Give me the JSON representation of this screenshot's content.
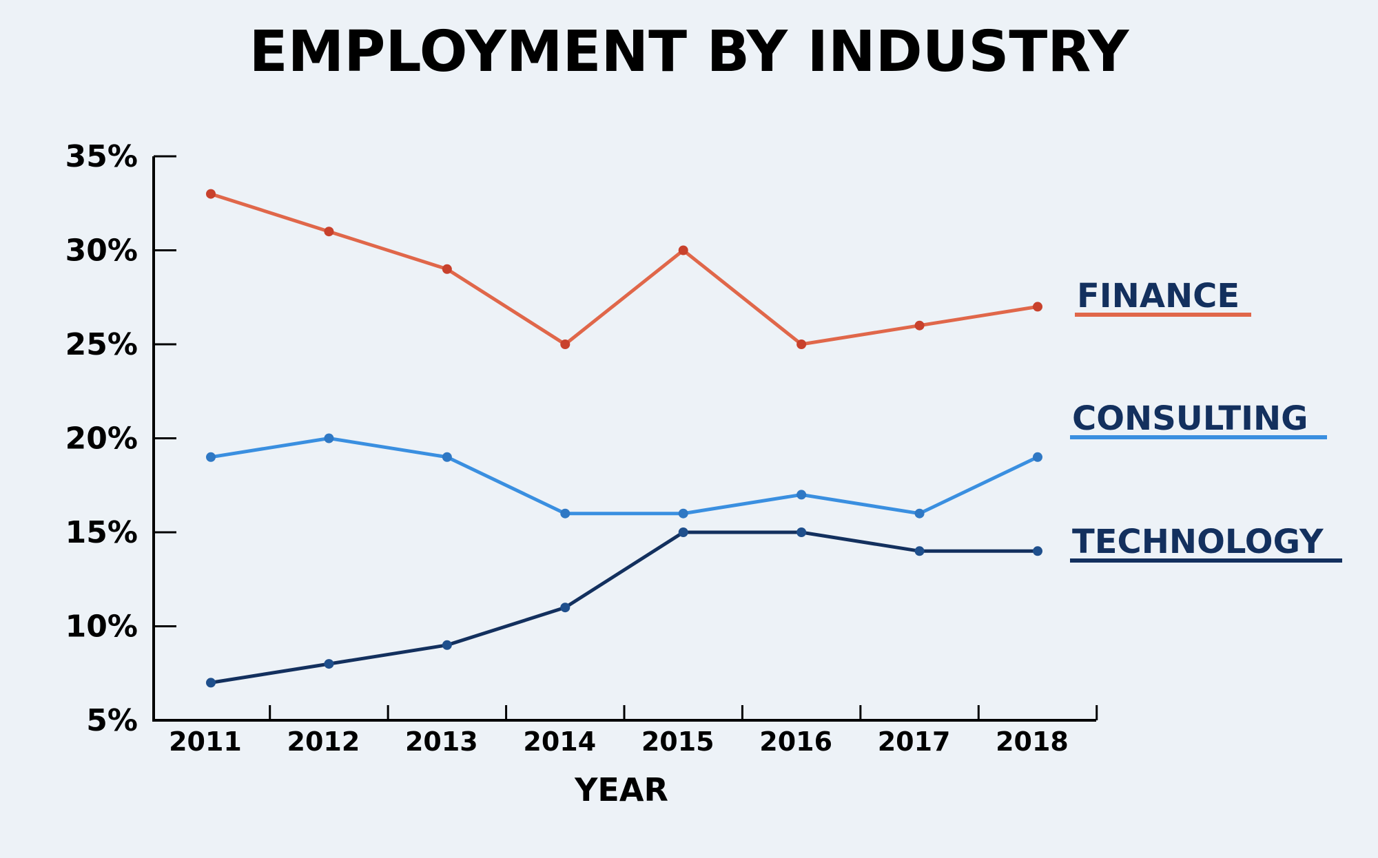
{
  "chart_data": {
    "type": "line",
    "title": "EMPLOYMENT BY INDUSTRY",
    "xlabel": "YEAR",
    "ylabel": "",
    "categories": [
      "2011",
      "2012",
      "2013",
      "2014",
      "2015",
      "2016",
      "2017",
      "2018"
    ],
    "ylim": [
      5,
      35
    ],
    "yticks": [
      "5%",
      "10%",
      "15%",
      "20%",
      "25%",
      "30%",
      "35%"
    ],
    "ytick_values": [
      5,
      10,
      15,
      20,
      25,
      30,
      35
    ],
    "grid": false,
    "legend": "right, inline labels",
    "series": [
      {
        "name": "FINANCE",
        "values": [
          33,
          31,
          29,
          25,
          30,
          25,
          26,
          27
        ],
        "color": "#e0674a",
        "marker_color": "#c8412c"
      },
      {
        "name": "CONSULTING",
        "values": [
          19,
          20,
          19,
          16,
          16,
          17,
          16,
          19
        ],
        "color": "#3a8fe0",
        "marker_color": "#2f78c4"
      },
      {
        "name": "TECHNOLOGY",
        "values": [
          7,
          8,
          9,
          11,
          15,
          15,
          14,
          14
        ],
        "color": "#13305e",
        "marker_color": "#1f4f8c"
      }
    ],
    "label_color": "#13305e"
  }
}
